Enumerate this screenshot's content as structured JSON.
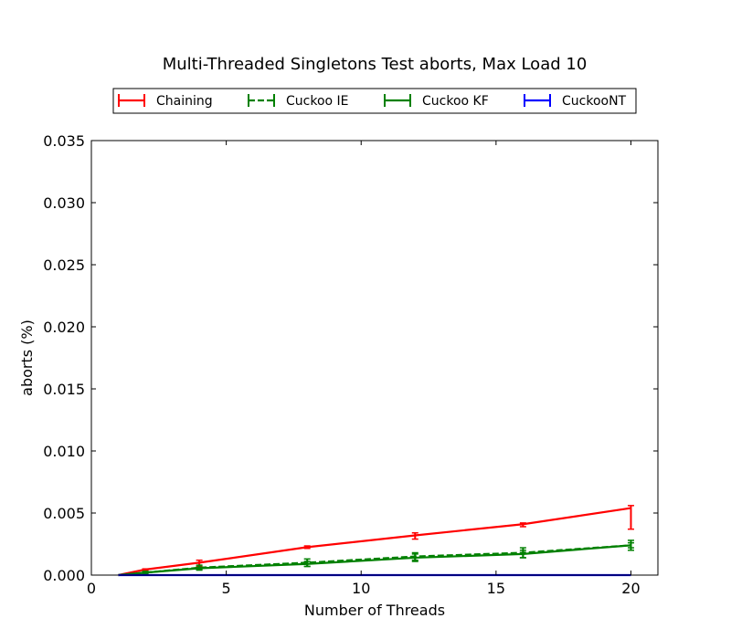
{
  "chart_data": {
    "type": "line",
    "title": "Multi-Threaded Singletons Test aborts, Max Load 10",
    "xlabel": "Number of Threads",
    "ylabel": "aborts (%)",
    "xlim": [
      0,
      21
    ],
    "ylim": [
      0,
      0.035
    ],
    "xticks": [
      0,
      5,
      10,
      15,
      20
    ],
    "yticks": [
      0.0,
      0.005,
      0.01,
      0.015,
      0.02,
      0.025,
      0.03,
      0.035
    ],
    "xtick_labels": [
      "0",
      "5",
      "10",
      "15",
      "20"
    ],
    "ytick_labels": [
      "0.000",
      "0.005",
      "0.010",
      "0.015",
      "0.020",
      "0.025",
      "0.030",
      "0.035"
    ],
    "grid": false,
    "legend_position": "top-center",
    "series": [
      {
        "name": "Chaining",
        "color": "#ff0000",
        "linestyle": "solid",
        "x": [
          1,
          2,
          4,
          8,
          12,
          16,
          20
        ],
        "y": [
          0.0,
          0.00045,
          0.001,
          0.00225,
          0.0032,
          0.0041,
          0.0054
        ],
        "yerr_low": [
          0.0,
          5e-05,
          0.0003,
          0.0001,
          0.0003,
          0.0002,
          0.0017
        ],
        "yerr_high": [
          0.0,
          5e-05,
          0.0002,
          0.0001,
          0.0002,
          0.0001,
          0.0002
        ]
      },
      {
        "name": "Cuckoo IE",
        "color": "#008000",
        "linestyle": "dashed",
        "x": [
          1,
          2,
          4,
          8,
          12,
          16,
          20
        ],
        "y": [
          0.0,
          0.0002,
          0.0006,
          0.001,
          0.0015,
          0.0018,
          0.0024
        ],
        "yerr_low": [
          0.0,
          0.0001,
          0.0002,
          0.0003,
          0.0003,
          0.0004,
          0.0004
        ],
        "yerr_high": [
          0.0,
          0.0001,
          0.0002,
          0.0003,
          0.0003,
          0.0004,
          0.0004
        ]
      },
      {
        "name": "Cuckoo KF",
        "color": "#008000",
        "linestyle": "solid",
        "x": [
          1,
          2,
          4,
          8,
          12,
          16,
          20
        ],
        "y": [
          0.0,
          0.0002,
          0.00055,
          0.0009,
          0.0014,
          0.0017,
          0.0024
        ],
        "yerr_low": [
          0.0,
          0.0001,
          0.0001,
          0.0002,
          0.0003,
          0.0003,
          0.0002
        ],
        "yerr_high": [
          0.0,
          0.0001,
          0.0001,
          0.0002,
          0.0003,
          0.0003,
          0.0002
        ]
      },
      {
        "name": "CuckooNT",
        "color": "#0000ff",
        "linestyle": "solid",
        "x": [
          1,
          2,
          4,
          8,
          12,
          16,
          20
        ],
        "y": [
          0.0,
          0.0,
          0.0,
          0.0,
          0.0,
          0.0,
          0.0
        ],
        "yerr_low": [
          0,
          0,
          0,
          0,
          0,
          0,
          0
        ],
        "yerr_high": [
          0,
          0,
          0,
          0,
          0,
          0,
          0
        ]
      }
    ]
  }
}
